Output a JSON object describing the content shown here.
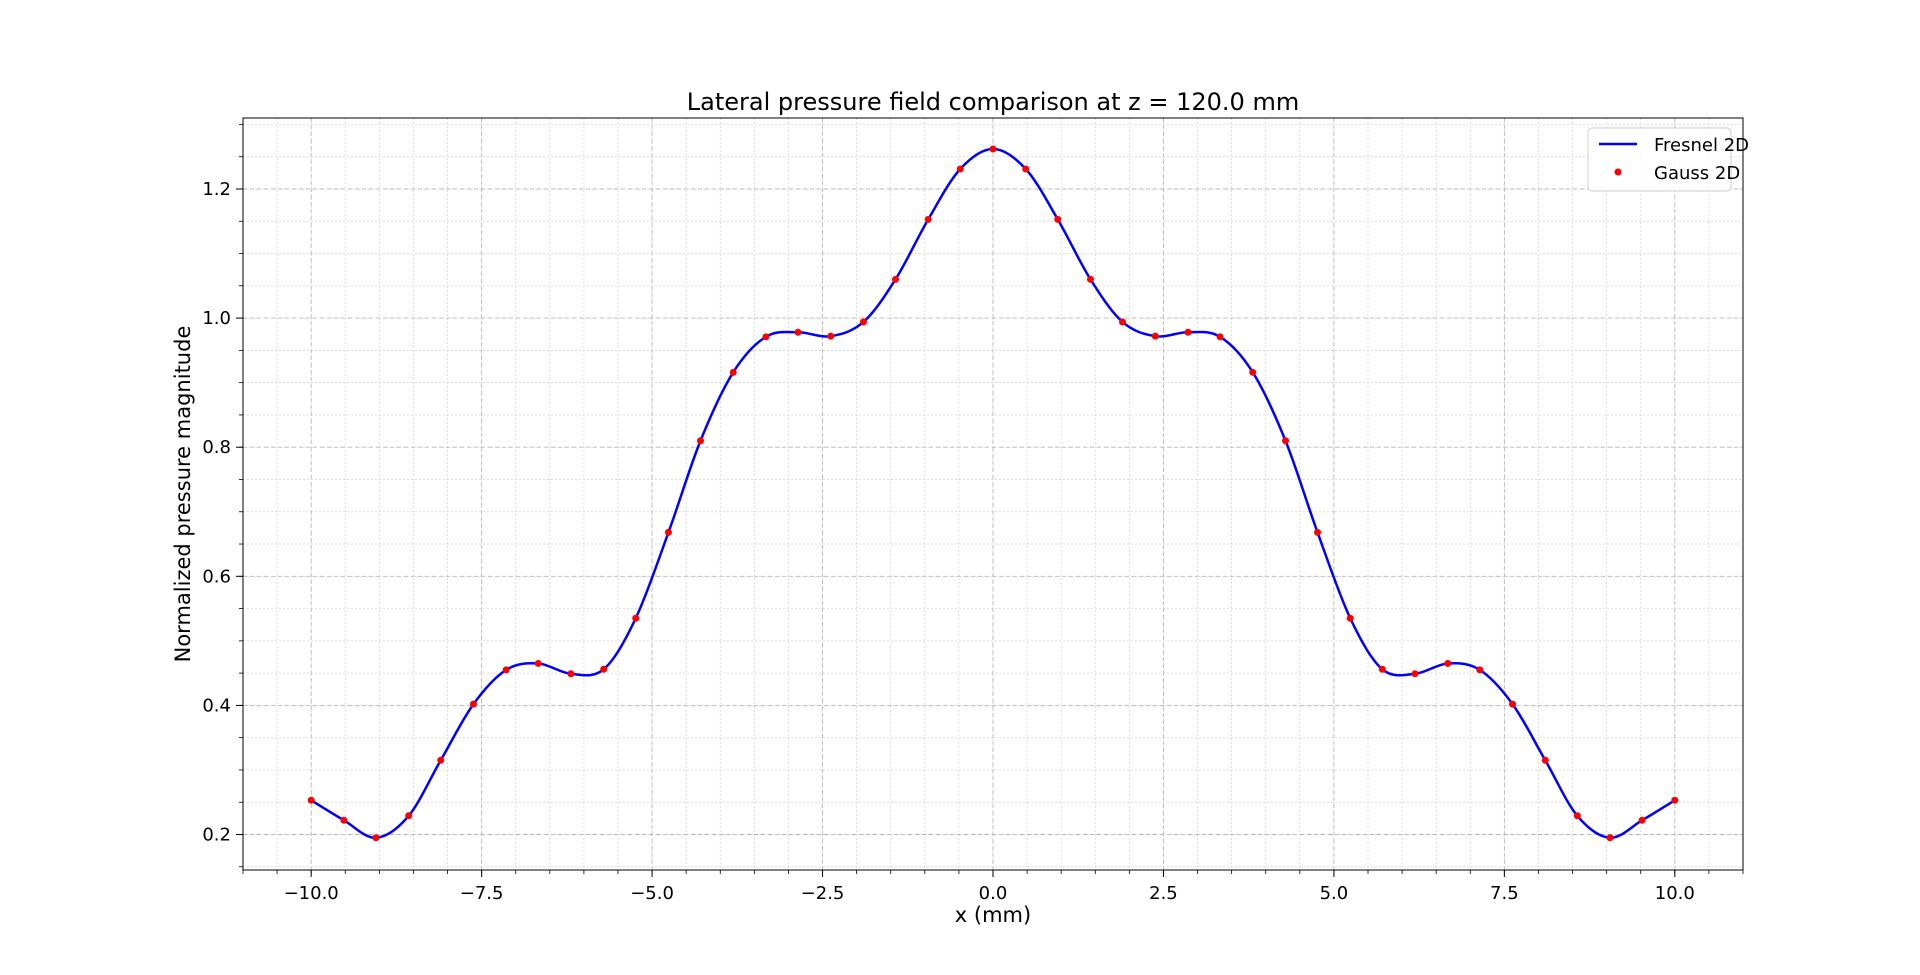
{
  "chart_data": {
    "type": "line",
    "title": "Lateral pressure field comparison at z = 120.0 mm",
    "xlabel": "x (mm)",
    "ylabel": "Normalized pressure magnitude",
    "xlim": [
      -11.0,
      11.0
    ],
    "ylim": [
      0.145,
      1.31
    ],
    "xticks": [
      -10.0,
      -7.5,
      -5.0,
      -2.5,
      0.0,
      2.5,
      5.0,
      7.5,
      10.0
    ],
    "xtick_labels": [
      "−10.0",
      "−7.5",
      "−5.0",
      "−2.5",
      "0.0",
      "2.5",
      "5.0",
      "7.5",
      "10.0"
    ],
    "yticks": [
      0.2,
      0.4,
      0.6,
      0.8,
      1.0,
      1.2
    ],
    "ytick_labels": [
      "0.2",
      "0.4",
      "0.6",
      "0.8",
      "1.0",
      "1.2"
    ],
    "grid": true,
    "minor_grid": true,
    "legend_position": "top-right",
    "series": [
      {
        "name": "Fresnel 2D",
        "style": "line",
        "color": "#0000ff",
        "x": [
          -10.0,
          -9.52,
          -9.05,
          -8.57,
          -8.1,
          -7.62,
          -7.14,
          -6.67,
          -6.19,
          -5.71,
          -5.24,
          -4.76,
          -4.29,
          -3.81,
          -3.33,
          -2.86,
          -2.38,
          -1.9,
          -1.43,
          -0.95,
          -0.48,
          0.0,
          0.48,
          0.95,
          1.43,
          1.9,
          2.38,
          2.86,
          3.33,
          3.81,
          4.29,
          4.76,
          5.24,
          5.71,
          6.19,
          6.67,
          7.14,
          7.62,
          8.1,
          8.57,
          9.05,
          9.52,
          10.0
        ],
        "y": [
          0.253,
          0.222,
          0.195,
          0.229,
          0.315,
          0.402,
          0.455,
          0.465,
          0.449,
          0.456,
          0.535,
          0.668,
          0.81,
          0.916,
          0.971,
          0.978,
          0.972,
          0.994,
          1.06,
          1.153,
          1.231,
          1.262,
          1.231,
          1.153,
          1.06,
          0.994,
          0.972,
          0.978,
          0.971,
          0.916,
          0.81,
          0.668,
          0.535,
          0.456,
          0.449,
          0.465,
          0.455,
          0.402,
          0.315,
          0.229,
          0.195,
          0.222,
          0.253
        ]
      },
      {
        "name": "Gauss 2D",
        "style": "markers",
        "color": "#ff0000",
        "x": [
          -10.0,
          -9.52,
          -9.05,
          -8.57,
          -8.1,
          -7.62,
          -7.14,
          -6.67,
          -6.19,
          -5.71,
          -5.24,
          -4.76,
          -4.29,
          -3.81,
          -3.33,
          -2.86,
          -2.38,
          -1.9,
          -1.43,
          -0.95,
          -0.48,
          0.0,
          0.48,
          0.95,
          1.43,
          1.9,
          2.38,
          2.86,
          3.33,
          3.81,
          4.29,
          4.76,
          5.24,
          5.71,
          6.19,
          6.67,
          7.14,
          7.62,
          8.1,
          8.57,
          9.05,
          9.52,
          10.0
        ],
        "y": [
          0.253,
          0.222,
          0.195,
          0.229,
          0.315,
          0.402,
          0.455,
          0.465,
          0.449,
          0.456,
          0.535,
          0.668,
          0.81,
          0.916,
          0.971,
          0.978,
          0.972,
          0.994,
          1.06,
          1.153,
          1.231,
          1.262,
          1.231,
          1.153,
          1.06,
          0.994,
          0.972,
          0.978,
          0.971,
          0.916,
          0.81,
          0.668,
          0.535,
          0.456,
          0.449,
          0.465,
          0.455,
          0.402,
          0.315,
          0.229,
          0.195,
          0.222,
          0.253
        ]
      }
    ]
  }
}
